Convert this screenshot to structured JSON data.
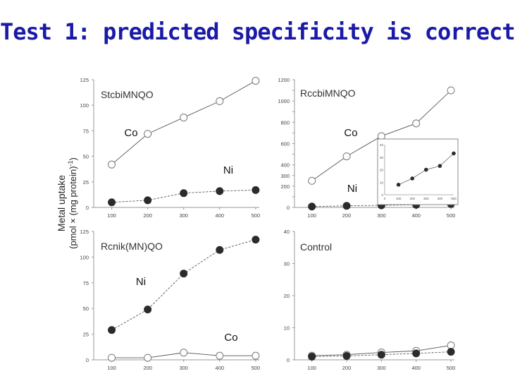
{
  "title": "Test 1: predicted specificity is correct",
  "y_axis_title": {
    "line1": "Metal uptake",
    "line2_before": "(pmol × (mg protein)",
    "line2_sup": "-1",
    "line2_after": ")"
  },
  "chart_data": [
    {
      "type": "line",
      "panel": "top-left",
      "title": "StcbiMNQO",
      "x": [
        100,
        200,
        300,
        400,
        500
      ],
      "xticks": [
        100,
        200,
        300,
        400,
        500
      ],
      "xlim": [
        50,
        510
      ],
      "ylim": [
        0,
        125
      ],
      "yticks": [
        0,
        25,
        50,
        75,
        100,
        125
      ],
      "series": [
        {
          "name": "Co",
          "marker": "open",
          "values": [
            42,
            72,
            88,
            104,
            124
          ]
        },
        {
          "name": "Ni",
          "marker": "filled",
          "values": [
            5,
            7,
            14,
            16,
            17
          ]
        }
      ],
      "annotations": [
        "Co",
        "Ni"
      ]
    },
    {
      "type": "line",
      "panel": "top-right",
      "title": "RccbiMNQO",
      "x": [
        100,
        200,
        300,
        400,
        500
      ],
      "xticks": [
        100,
        200,
        300,
        400,
        500
      ],
      "xlim": [
        50,
        510
      ],
      "ylim": [
        0,
        1200
      ],
      "yticks": [
        0,
        100,
        200,
        300,
        400,
        500,
        600,
        700,
        800,
        900,
        1000,
        1100,
        1200
      ],
      "ytick_labels": [
        "0",
        "200",
        "300",
        "400",
        "600",
        "800",
        "1000",
        "1200"
      ],
      "series": [
        {
          "name": "Co",
          "marker": "open",
          "values": [
            250,
            480,
            670,
            790,
            1100
          ]
        },
        {
          "name": "Ni",
          "marker": "filled",
          "values": [
            8,
            15,
            20,
            25,
            32
          ]
        }
      ],
      "annotations": [
        "Co",
        "Ni"
      ],
      "inset": {
        "type": "line",
        "x": [
          100,
          200,
          300,
          400,
          500
        ],
        "xticks": [
          0,
          100,
          200,
          300,
          400,
          500
        ],
        "xlim": [
          0,
          500
        ],
        "ylim": [
          0,
          40
        ],
        "yticks": [
          0,
          10,
          20,
          30,
          40
        ],
        "series": [
          {
            "name": "Ni",
            "marker": "filled",
            "values": [
              8,
              13,
              20,
              23,
              33
            ]
          }
        ]
      }
    },
    {
      "type": "line",
      "panel": "bottom-left",
      "title": "Rcnik(MN)QO",
      "x": [
        100,
        200,
        300,
        400,
        500
      ],
      "xticks": [
        100,
        200,
        300,
        400,
        500
      ],
      "xlim": [
        50,
        510
      ],
      "ylim": [
        0,
        125
      ],
      "yticks": [
        0,
        25,
        50,
        75,
        100,
        125
      ],
      "series": [
        {
          "name": "Ni",
          "marker": "filled",
          "values": [
            29,
            49,
            84,
            107,
            117
          ]
        },
        {
          "name": "Co",
          "marker": "open",
          "values": [
            2,
            2,
            7,
            4,
            4
          ]
        }
      ],
      "annotations": [
        "Ni",
        "Co"
      ]
    },
    {
      "type": "line",
      "panel": "bottom-right",
      "title": "Control",
      "x": [
        100,
        200,
        300,
        400,
        500
      ],
      "xticks": [
        100,
        200,
        300,
        400,
        500
      ],
      "xlim": [
        50,
        510
      ],
      "ylim": [
        0,
        40
      ],
      "yticks": [
        0,
        10,
        20,
        30,
        40
      ],
      "series": [
        {
          "name": "Co",
          "marker": "open",
          "values": [
            1.3,
            1.6,
            2.3,
            2.8,
            4.5
          ]
        },
        {
          "name": "Ni",
          "marker": "filled",
          "values": [
            1,
            1.2,
            1.6,
            2,
            2.5
          ]
        }
      ]
    }
  ],
  "colors": {
    "title": "#1a1aa6",
    "axis": "#9a9a9a",
    "line": "#555555",
    "marker_fill": "#2b2b2b",
    "text": "#222222"
  }
}
